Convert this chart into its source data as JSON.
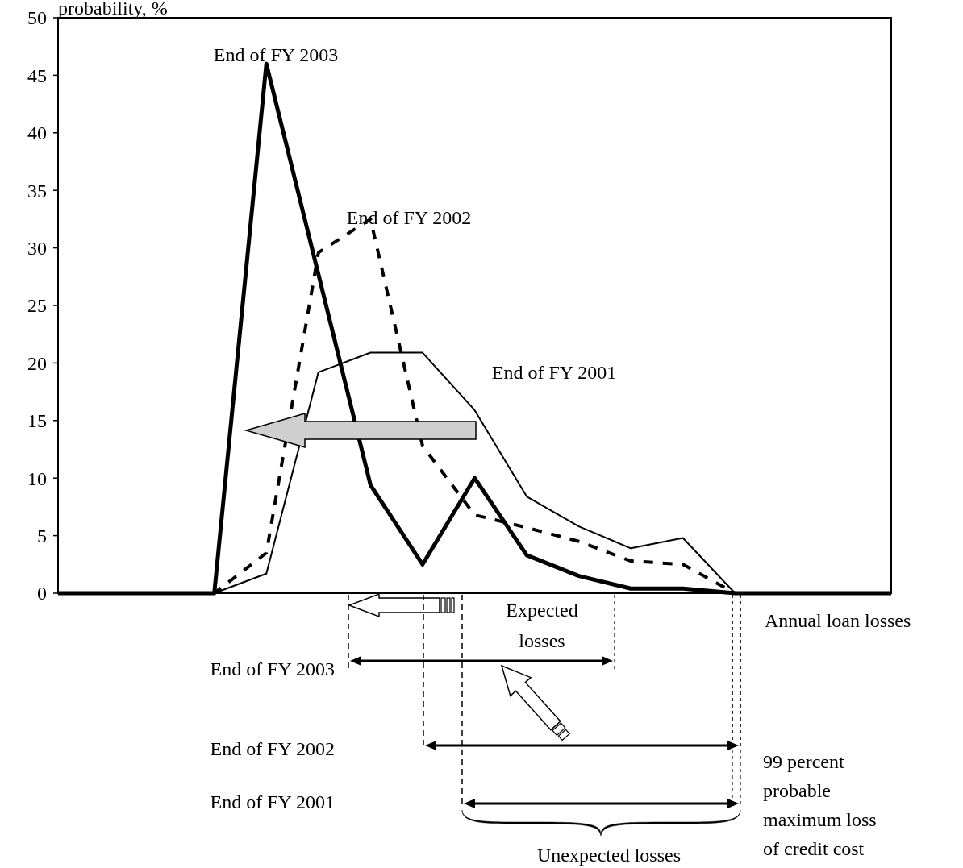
{
  "chart_data": {
    "type": "line",
    "ylabel": "probability, %",
    "xlabel": "Annual loan losses",
    "categories": [
      null,
      null,
      null,
      null,
      null,
      null,
      null,
      null,
      null,
      null,
      null,
      null,
      null,
      null,
      null,
      null,
      null
    ],
    "ylim": [
      0,
      50
    ],
    "yticks": [
      0,
      5,
      10,
      15,
      20,
      25,
      30,
      35,
      40,
      45,
      50
    ],
    "marker": "none",
    "series": [
      {
        "name": "End of FY 2003",
        "color": "#000000",
        "line_style": "solid",
        "values": [
          0,
          0,
          0,
          0,
          46,
          27.7,
          9.4,
          2.5,
          10,
          3.3,
          1.5,
          0.4,
          0.4,
          0,
          0,
          0,
          0
        ]
      },
      {
        "name": "End of FY 2002",
        "color": "#000000",
        "line_style": "dashed",
        "values": [
          0,
          0,
          0,
          0,
          3.5,
          29.6,
          32.5,
          12.8,
          6.8,
          5.7,
          4.5,
          2.8,
          2.5,
          0,
          0,
          0,
          0
        ]
      },
      {
        "name": "End of FY 2001",
        "color": "#000000",
        "line_style": "solid",
        "values": [
          0,
          0,
          0,
          0,
          1.7,
          19.2,
          20.9,
          20.9,
          15.9,
          8.4,
          5.8,
          3.9,
          4.8,
          0,
          0,
          0,
          0
        ]
      }
    ],
    "annotations": [
      "Expected losses",
      "End of FY 2003",
      "End of FY 2002",
      "End of FY 2001",
      "Unexpected losses",
      "99 percent probable maximum loss of credit cost"
    ]
  }
}
